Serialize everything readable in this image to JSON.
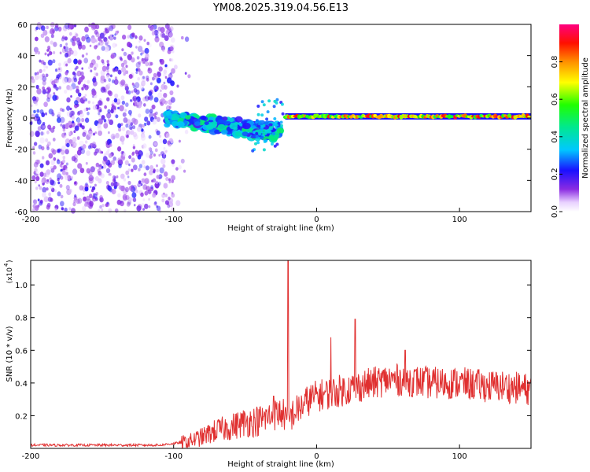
{
  "title": "YM08.2025.319.04.56.E13",
  "chart_data": [
    {
      "type": "heatmap",
      "xlabel": "Height of straight line (km)",
      "ylabel": "Frequency (Hz)",
      "xlim": [
        -200,
        150
      ],
      "ylim": [
        -60,
        60
      ],
      "xticks": [
        "-200",
        "-100",
        "0",
        "100"
      ],
      "yticks": [
        "60",
        "40",
        "20",
        "0",
        "-20",
        "-40",
        "-60"
      ],
      "colorbar": {
        "label": "Normalized spectral amplitude",
        "range": [
          0.0,
          1.0
        ],
        "ticks": [
          "0.0",
          "0.2",
          "0.4",
          "0.6",
          "0.8"
        ]
      },
      "regions": [
        {
          "name": "diffuse noise",
          "x_range": [
            -200,
            -100
          ],
          "freq_range": [
            -60,
            60
          ],
          "amplitude": 0.15
        },
        {
          "name": "converging streak",
          "x_range": [
            -105,
            -25
          ],
          "freq_start": [
            -2,
            2
          ],
          "freq_end": [
            -14,
            -6
          ],
          "amplitude": 0.35
        },
        {
          "name": "steady line",
          "x_range": [
            -22,
            150
          ],
          "freq": 1,
          "amplitude": 0.9
        }
      ]
    },
    {
      "type": "line",
      "xlabel": "Height of straight line (km)",
      "ylabel": "SNR (10 * v/v)",
      "y_scale_label": "(x10",
      "y_scale_exponent": "4",
      "xlim": [
        -200,
        150
      ],
      "ylim": [
        0,
        1.15
      ],
      "xticks": [
        "-200",
        "-100",
        "0",
        "100"
      ],
      "yticks": [
        "0.2",
        "0.4",
        "0.6",
        "0.8",
        "1.0"
      ],
      "series": [
        {
          "name": "SNR",
          "color": "#e03030",
          "x": [
            -200,
            -150,
            -110,
            -90,
            -80,
            -70,
            -60,
            -50,
            -40,
            -30,
            -25,
            -22,
            -20,
            -18,
            -10,
            -5,
            0,
            10,
            20,
            30,
            40,
            50,
            60,
            70,
            80,
            90,
            100,
            110,
            120,
            130,
            140,
            150
          ],
          "y": [
            0.02,
            0.02,
            0.02,
            0.04,
            0.07,
            0.11,
            0.13,
            0.16,
            0.17,
            0.2,
            0.22,
            0.2,
            0.14,
            0.2,
            0.26,
            0.3,
            0.32,
            0.34,
            0.36,
            0.38,
            0.4,
            0.42,
            0.42,
            0.41,
            0.4,
            0.4,
            0.4,
            0.39,
            0.38,
            0.38,
            0.37,
            0.36
          ]
        }
      ],
      "spikes": [
        {
          "x": -20,
          "y": 1.15
        },
        {
          "x": 10,
          "y": 0.68
        },
        {
          "x": 27,
          "y": 0.79
        },
        {
          "x": 62,
          "y": 0.6
        },
        {
          "x": -30,
          "y": 0.32
        }
      ]
    }
  ]
}
